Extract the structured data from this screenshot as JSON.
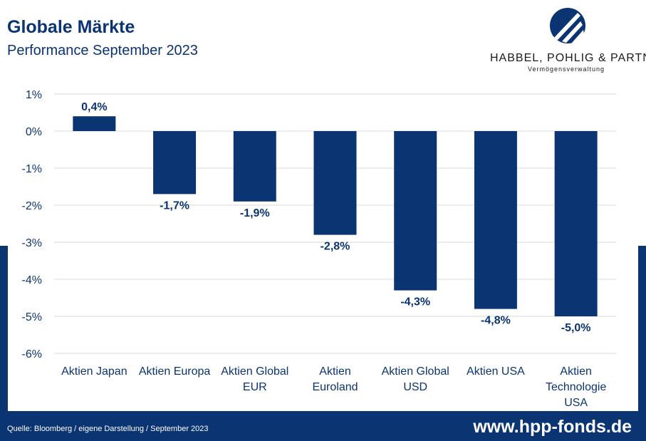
{
  "header": {
    "title": "Globale Märkte",
    "subtitle": "Performance September 2023"
  },
  "logo": {
    "name": "HABBEL, POHLIG & PARTNER",
    "tagline": "Vermögensverwaltung"
  },
  "footer": {
    "source": "Quelle: Bloomberg / eigene Darstellung / September 2023",
    "website": "www.hpp-fonds.de"
  },
  "colors": {
    "primary": "#0a3472",
    "grid": "#d9d9d9",
    "text": "#0a3472"
  },
  "chart_data": {
    "type": "bar",
    "categories": [
      [
        "Aktien Japan"
      ],
      [
        "Aktien Europa"
      ],
      [
        "Aktien Global",
        "EUR"
      ],
      [
        "Aktien",
        "Euroland"
      ],
      [
        "Aktien Global",
        "USD"
      ],
      [
        "Aktien USA"
      ],
      [
        "Aktien",
        "Technologie",
        "USA"
      ]
    ],
    "values": [
      0.4,
      -1.7,
      -1.9,
      -2.8,
      -4.3,
      -4.8,
      -5.0
    ],
    "data_labels": [
      "0,4%",
      "-1,7%",
      "-1,9%",
      "-2,8%",
      "-4,3%",
      "-4,8%",
      "-5,0%"
    ],
    "y_ticks": [
      1,
      0,
      -1,
      -2,
      -3,
      -4,
      -5,
      -6
    ],
    "y_tick_labels": [
      "1%",
      "0%",
      "-1%",
      "-2%",
      "-3%",
      "-4%",
      "-5%",
      "-6%"
    ],
    "ylim": [
      -6,
      1
    ],
    "grid": true,
    "legend": false
  }
}
